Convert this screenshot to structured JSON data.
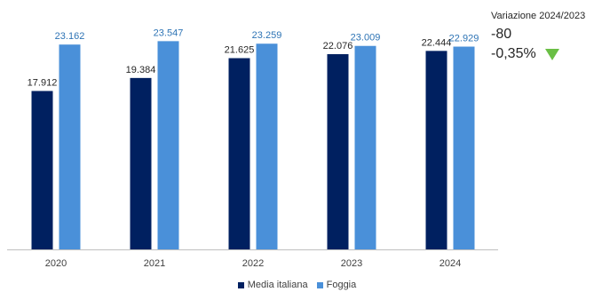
{
  "chart_data": {
    "type": "bar",
    "categories": [
      "2020",
      "2021",
      "2022",
      "2023",
      "2024"
    ],
    "series": [
      {
        "name": "Media italiana",
        "values": [
          17912,
          19384,
          21625,
          22076,
          22444
        ],
        "labels": [
          "17.912",
          "19.384",
          "21.625",
          "22.076",
          "22.444"
        ],
        "color": "#002060"
      },
      {
        "name": "Foggia",
        "values": [
          23162,
          23547,
          23259,
          23009,
          22929
        ],
        "labels": [
          "23.162",
          "23.547",
          "23.259",
          "23.009",
          "22.929"
        ],
        "color": "#4a90d9"
      }
    ],
    "ylim": [
      0,
      28000
    ],
    "grid": false,
    "legend": "bottom",
    "label_colors": {
      "Media italiana": "#262626",
      "Foggia": "#2e74b5"
    }
  },
  "variation": {
    "title": "Variazione 2024/2023",
    "value": "-80",
    "percent": "-0,35%",
    "arrow": "down-triangle-icon",
    "arrow_color": "#6abf45"
  }
}
